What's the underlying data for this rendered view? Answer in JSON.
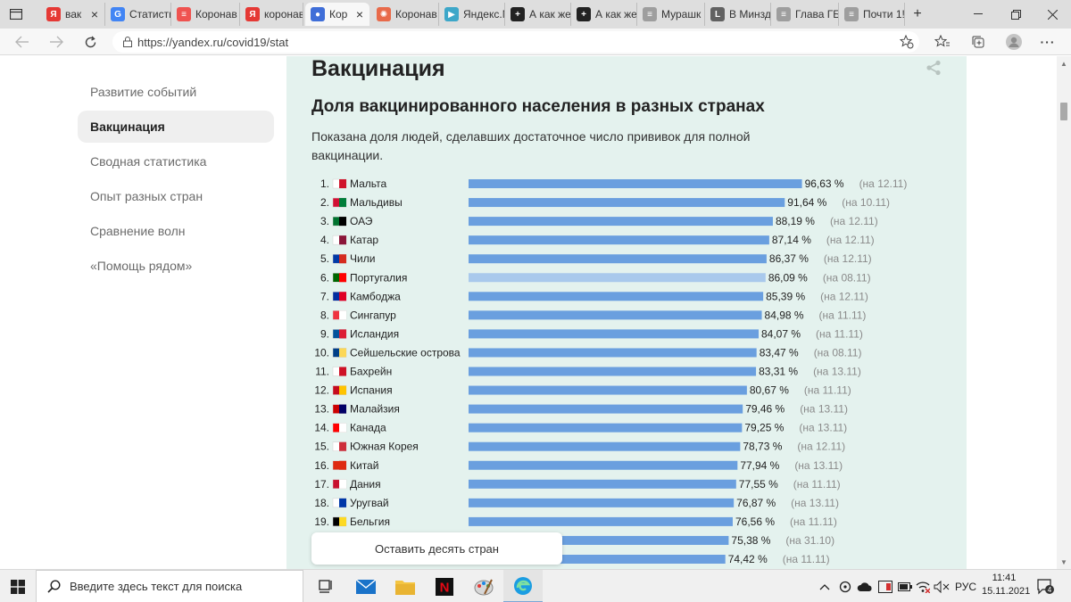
{
  "browser": {
    "tabs": [
      {
        "title": "вак",
        "favicon": "yandex-icon",
        "color": "#e53935",
        "letter": "Я",
        "x": 46,
        "w": 72,
        "close": true
      },
      {
        "title": "Статисти",
        "favicon": "google-icon",
        "color": "#4285f4",
        "letter": "G",
        "x": 118,
        "w": 74,
        "close": false
      },
      {
        "title": "Коронав",
        "favicon": "news-icon",
        "color": "#ef5350",
        "letter": "≡",
        "x": 192,
        "w": 77,
        "close": false
      },
      {
        "title": "коронав",
        "favicon": "yandex-icon",
        "color": "#e53935",
        "letter": "Я",
        "x": 269,
        "w": 71,
        "close": false
      },
      {
        "title": "Кор",
        "favicon": "yandex-covid-icon",
        "color": "#3f6ed8",
        "letter": "●",
        "x": 342,
        "w": 72,
        "close": true,
        "active": true
      },
      {
        "title": "Коронав",
        "favicon": "virus-icon",
        "color": "#e86a4a",
        "letter": "✺",
        "x": 416,
        "w": 76,
        "close": false
      },
      {
        "title": "Яндекс.М",
        "favicon": "music-icon",
        "color": "#3da7c9",
        "letter": "▶",
        "x": 492,
        "w": 74,
        "close": false
      },
      {
        "title": "А как же",
        "favicon": "plus-circle-icon",
        "color": "#222222",
        "letter": "+",
        "x": 566,
        "w": 74,
        "close": false
      },
      {
        "title": "А как же",
        "favicon": "plus-circle-icon",
        "color": "#222222",
        "letter": "+",
        "x": 640,
        "w": 74,
        "close": false
      },
      {
        "title": "Мурашк",
        "favicon": "doc-icon",
        "color": "#9e9e9e",
        "letter": "≡",
        "x": 714,
        "w": 76,
        "close": false
      },
      {
        "title": "В Минзд",
        "favicon": "l-icon",
        "color": "#616161",
        "letter": "L",
        "x": 790,
        "w": 74,
        "close": false
      },
      {
        "title": "Глава ГБ",
        "favicon": "doc-icon",
        "color": "#9e9e9e",
        "letter": "≡",
        "x": 864,
        "w": 76,
        "close": false
      },
      {
        "title": "Почти 1!",
        "favicon": "doc-icon",
        "color": "#9e9e9e",
        "letter": "≡",
        "x": 940,
        "w": 74,
        "close": false
      }
    ],
    "new_tab": "+",
    "url": "https://yandex.ru/covid19/stat"
  },
  "sidebar": {
    "items": [
      {
        "label": "Развитие событий",
        "active": false
      },
      {
        "label": "Вакцинация",
        "active": true
      },
      {
        "label": "Сводная статистика",
        "active": false
      },
      {
        "label": "Опыт разных стран",
        "active": false
      },
      {
        "label": "Сравнение волн",
        "active": false
      },
      {
        "label": "«Помощь рядом»",
        "active": false
      }
    ]
  },
  "main": {
    "section_title": "Вакцинация",
    "chart_title": "Доля вакцинированного населения в разных странах",
    "chart_description": "Показана доля людей, сделавших достаточное число прививок для полной вакцинации.",
    "more_button": "Оставить десять стран"
  },
  "chart_data": {
    "type": "bar",
    "orientation": "horizontal",
    "title": "Доля вакцинированного населения в разных странах",
    "unit": "%",
    "bar_color": "#6a9fdf",
    "highlight_color": "#a9c9ec",
    "rows": [
      {
        "rank": "1.",
        "country": "Мальта",
        "value": 96.63,
        "label": "96,63 %",
        "date": "(на 12.11)",
        "flag": [
          "#ffffff",
          "#cf142b"
        ]
      },
      {
        "rank": "2.",
        "country": "Мальдивы",
        "value": 91.64,
        "label": "91,64 %",
        "date": "(на 10.11)",
        "flag": [
          "#d21034",
          "#007e3a"
        ]
      },
      {
        "rank": "3.",
        "country": "ОАЭ",
        "value": 88.19,
        "label": "88,19 %",
        "date": "(на 12.11)",
        "flag": [
          "#00732f",
          "#000000"
        ]
      },
      {
        "rank": "4.",
        "country": "Катар",
        "value": 87.14,
        "label": "87,14 %",
        "date": "(на 12.11)",
        "flag": [
          "#ffffff",
          "#8a1538"
        ]
      },
      {
        "rank": "5.",
        "country": "Чили",
        "value": 86.37,
        "label": "86,37 %",
        "date": "(на 12.11)",
        "flag": [
          "#0039a6",
          "#d52b1e"
        ]
      },
      {
        "rank": "6.",
        "country": "Португалия",
        "value": 86.09,
        "label": "86,09 %",
        "date": "(на 08.11)",
        "flag": [
          "#006600",
          "#ff0000"
        ],
        "highlight": true
      },
      {
        "rank": "7.",
        "country": "Камбоджа",
        "value": 85.39,
        "label": "85,39 %",
        "date": "(на 12.11)",
        "flag": [
          "#032ea1",
          "#e00025"
        ]
      },
      {
        "rank": "8.",
        "country": "Сингапур",
        "value": 84.98,
        "label": "84,98 %",
        "date": "(на 11.11)",
        "flag": [
          "#ef3340",
          "#ffffff"
        ]
      },
      {
        "rank": "9.",
        "country": "Исландия",
        "value": 84.07,
        "label": "84,07 %",
        "date": "(на 11.11)",
        "flag": [
          "#02529c",
          "#dc1e35"
        ]
      },
      {
        "rank": "10.",
        "country": "Сейшельские острова",
        "value": 83.47,
        "label": "83,47 %",
        "date": "(на 08.11)",
        "flag": [
          "#003f87",
          "#fcd856"
        ]
      },
      {
        "rank": "11.",
        "country": "Бахрейн",
        "value": 83.31,
        "label": "83,31 %",
        "date": "(на 13.11)",
        "flag": [
          "#ffffff",
          "#ce1126"
        ]
      },
      {
        "rank": "12.",
        "country": "Испания",
        "value": 80.67,
        "label": "80,67 %",
        "date": "(на 11.11)",
        "flag": [
          "#c60b1e",
          "#ffc400"
        ]
      },
      {
        "rank": "13.",
        "country": "Малайзия",
        "value": 79.46,
        "label": "79,46 %",
        "date": "(на 13.11)",
        "flag": [
          "#cc0001",
          "#010066"
        ]
      },
      {
        "rank": "14.",
        "country": "Канада",
        "value": 79.25,
        "label": "79,25 %",
        "date": "(на 13.11)",
        "flag": [
          "#ff0000",
          "#ffffff"
        ]
      },
      {
        "rank": "15.",
        "country": "Южная Корея",
        "value": 78.73,
        "label": "78,73 %",
        "date": "(на 12.11)",
        "flag": [
          "#ffffff",
          "#cd2e3a"
        ]
      },
      {
        "rank": "16.",
        "country": "Китай",
        "value": 77.94,
        "label": "77,94 %",
        "date": "(на 13.11)",
        "flag": [
          "#de2910",
          "#de2910"
        ]
      },
      {
        "rank": "17.",
        "country": "Дания",
        "value": 77.55,
        "label": "77,55 %",
        "date": "(на 11.11)",
        "flag": [
          "#c8102e",
          "#ffffff"
        ]
      },
      {
        "rank": "18.",
        "country": "Уругвай",
        "value": 76.87,
        "label": "76,87 %",
        "date": "(на 13.11)",
        "flag": [
          "#ffffff",
          "#0038a8"
        ]
      },
      {
        "rank": "19.",
        "country": "Бельгия",
        "value": 76.56,
        "label": "76,56 %",
        "date": "(на 11.11)",
        "flag": [
          "#000000",
          "#fdda24"
        ]
      },
      {
        "rank": "",
        "country": "",
        "value": 75.38,
        "label": "75,38 %",
        "date": "(на 31.10)",
        "flag": null
      },
      {
        "rank": "",
        "country": "",
        "value": 74.42,
        "label": "74,42 %",
        "date": "(на 11.11)",
        "flag": null
      }
    ]
  },
  "taskbar": {
    "search_placeholder": "Введите здесь текст для поиска",
    "language": "РУС",
    "time": "11:41",
    "date": "15.11.2021",
    "notification_count": "4"
  }
}
